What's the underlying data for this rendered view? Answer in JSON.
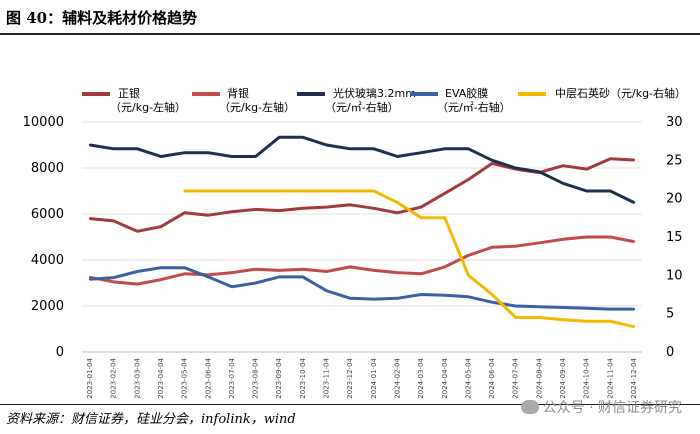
{
  "figure": {
    "title": "图 40：辅料及耗材价格趋势",
    "source": "资料来源：财信证券，硅业分会，infolink，wind",
    "watermark": "公众号 · 财信证券研究"
  },
  "chart_data": {
    "type": "line",
    "x": [
      "2023-01-04",
      "2023-02-04",
      "2023-03-04",
      "2023-04-04",
      "2023-05-04",
      "2023-06-04",
      "2023-07-04",
      "2023-08-04",
      "2023-09-04",
      "2023-10-04",
      "2023-11-04",
      "2023-12-04",
      "2024-01-04",
      "2024-02-04",
      "2024-03-04",
      "2024-04-04",
      "2024-05-04",
      "2024-06-04",
      "2024-07-04",
      "2024-08-04",
      "2024-09-04",
      "2024-10-04",
      "2024-11-04",
      "2024-12-04"
    ],
    "left_axis": {
      "ylim": [
        0,
        10000
      ],
      "ticks": [
        "0",
        "2000",
        "4000",
        "6000",
        "8000",
        "10000"
      ]
    },
    "right_axis": {
      "ylim": [
        0,
        30
      ],
      "ticks": [
        "0",
        "5",
        "10",
        "15",
        "20",
        "25",
        "30"
      ]
    },
    "series": [
      {
        "name": "正银",
        "unit": "（元/kg-左轴）",
        "axis": "left",
        "color": "#a33a3a",
        "values": [
          5800,
          5700,
          5250,
          5450,
          6050,
          5950,
          6100,
          6200,
          6150,
          6250,
          6300,
          6400,
          6250,
          6050,
          6300,
          6900,
          7500,
          8200,
          7950,
          7800,
          8100,
          7950,
          8400,
          8350
        ]
      },
      {
        "name": "背银",
        "unit": "（元/kg-左轴）",
        "axis": "left",
        "color": "#c44a4a",
        "values": [
          3250,
          3050,
          2950,
          3150,
          3400,
          3350,
          3450,
          3600,
          3550,
          3600,
          3500,
          3700,
          3550,
          3450,
          3400,
          3700,
          4200,
          4550,
          4600,
          4750,
          4900,
          5000,
          5000,
          4800
        ]
      },
      {
        "name": "光伏玻璃3.2mm",
        "unit": "（元/㎡-右轴）",
        "axis": "right",
        "color": "#1e2f4f",
        "values": [
          27,
          26.5,
          26.5,
          25.5,
          26,
          26,
          25.5,
          25.5,
          28,
          28,
          27,
          26.5,
          26.5,
          25.5,
          26,
          26.5,
          26.5,
          25,
          24,
          23.5,
          22,
          21,
          21,
          19.5
        ]
      },
      {
        "name": "EVA胶膜",
        "unit": "（元/㎡-右轴）",
        "axis": "right",
        "color": "#3a62a3",
        "values": [
          9.5,
          9.7,
          10.5,
          11,
          11,
          9.8,
          8.5,
          9,
          9.8,
          9.8,
          8,
          7,
          6.9,
          7,
          7.5,
          7.4,
          7.2,
          6.5,
          6,
          5.9,
          5.8,
          5.7,
          5.6,
          5.6
        ]
      },
      {
        "name": "中层石英砂（元/kg-右轴）",
        "unit": "",
        "axis": "right",
        "color": "#f5b800",
        "values": [
          null,
          null,
          null,
          null,
          21,
          21,
          21,
          21,
          21,
          21,
          21,
          21,
          21,
          19.5,
          17.5,
          17.5,
          10,
          7.5,
          4.5,
          4.5,
          4.2,
          4.0,
          4.0,
          3.3
        ]
      }
    ]
  }
}
